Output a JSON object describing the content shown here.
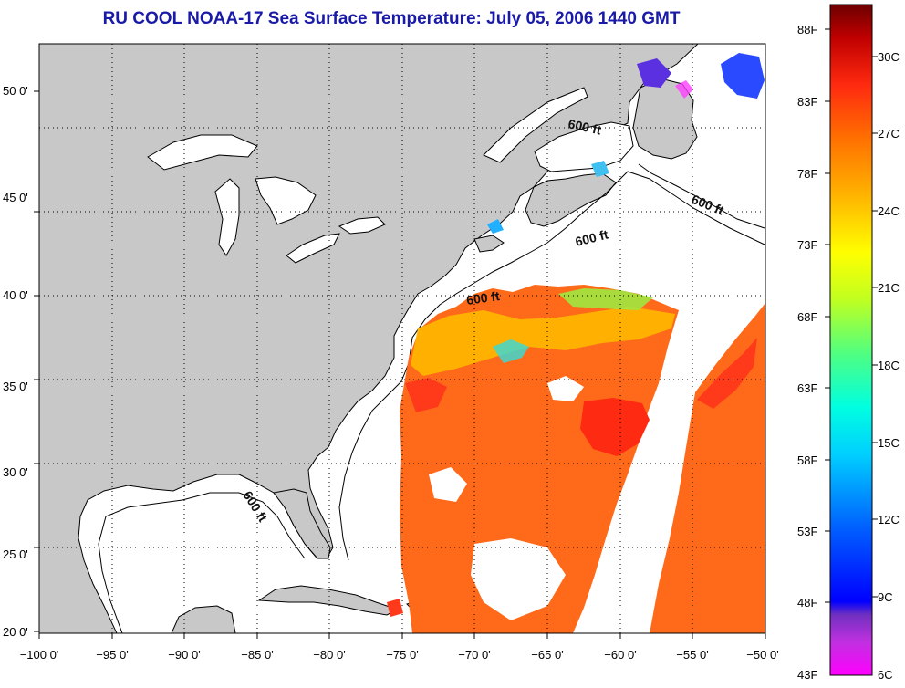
{
  "title": "RU COOL  NOAA-17  Sea Surface Temperature:  July 05, 2006 1440 GMT",
  "axes": {
    "x_ticks": [
      "−100 0'",
      "−95 0'",
      "−90 0'",
      "−85 0'",
      "−80 0'",
      "−75 0'",
      "−70 0'",
      "−65 0'",
      "−60 0'",
      "−55 0'",
      "−50 0'"
    ],
    "y_ticks": [
      "50 0'",
      "45 0'",
      "40 0'",
      "35 0'",
      "30 0'",
      "25 0'",
      "20 0'"
    ]
  },
  "contour_labels": [
    "600 ft",
    "600 ft",
    "600 ft",
    "600 ft",
    "600 ft"
  ],
  "colorbar": {
    "fahrenheit": [
      "88F",
      "83F",
      "78F",
      "73F",
      "68F",
      "63F",
      "58F",
      "53F",
      "48F",
      "43F"
    ],
    "celsius": [
      "30C",
      "27C",
      "24C",
      "21C",
      "18C",
      "15C",
      "12C",
      "9C",
      "6C"
    ],
    "colors": [
      "#ff00ff",
      "#8c28c8",
      "#0000ff",
      "#00a0ff",
      "#00ffff",
      "#30ffa0",
      "#c8ff00",
      "#ffff00",
      "#ffb000",
      "#ff6a00",
      "#ff1a1a",
      "#b40000",
      "#6e0000"
    ]
  },
  "colors": {
    "land": "#c8c8c8",
    "water": "#ffffff",
    "sst_warm": "#ff6a1a",
    "sst_hot": "#ff3a1a",
    "sst_cool": "#ffb400",
    "title": "#1a1aa8"
  }
}
